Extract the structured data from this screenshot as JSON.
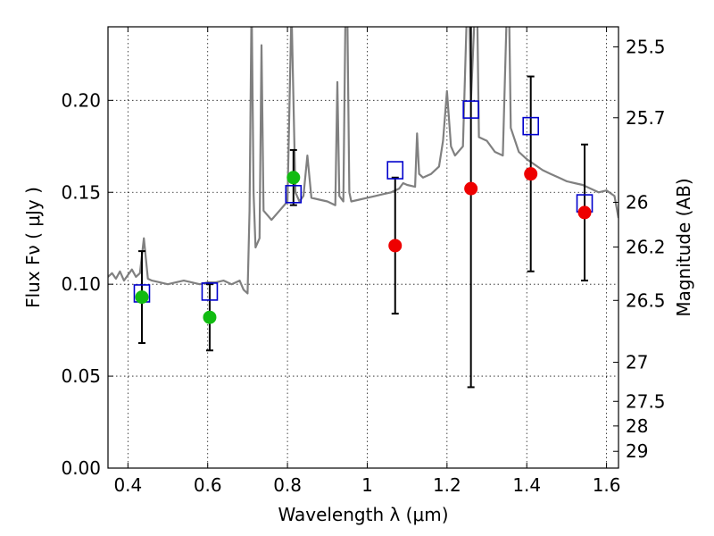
{
  "chart_data": {
    "type": "scatter",
    "title": "",
    "xlabel": "Wavelength  λ (μm)",
    "ylabel": "Flux  Fν  ( μJy )",
    "y2label": "Magnitude (AB)",
    "xlim": [
      0.35,
      1.63
    ],
    "ylim": [
      0.0,
      0.24
    ],
    "grid": true,
    "x_ticks": [
      0.4,
      0.6,
      0.8,
      1.0,
      1.2,
      1.4,
      1.6
    ],
    "x_tick_labels": [
      "0.4",
      "0.6",
      "0.8",
      "1",
      "1.2",
      "1.4",
      "1.6"
    ],
    "y_ticks": [
      0.0,
      0.05,
      0.1,
      0.15,
      0.2
    ],
    "y_tick_labels": [
      "0.00",
      "0.05",
      "0.10",
      "0.15",
      "0.20"
    ],
    "y2_tick_labels": [
      "25.5",
      "25.7",
      "26",
      "26.2",
      "26.5",
      "27",
      "27.5",
      "28",
      "29"
    ],
    "colors": {
      "spectrum": "#808080",
      "model": "#0000cc",
      "optical": "#11bb11",
      "nir": "#ee0000",
      "errorbar": "#000000"
    },
    "series": [
      {
        "type": "line",
        "x": [
          0.35,
          0.36,
          0.37,
          0.38,
          0.39,
          0.4,
          0.41,
          0.42,
          0.43,
          0.44,
          0.45,
          0.46,
          0.48,
          0.5,
          0.52,
          0.54,
          0.56,
          0.58,
          0.6,
          0.62,
          0.64,
          0.66,
          0.68,
          0.69,
          0.7,
          0.705,
          0.71,
          0.715,
          0.72,
          0.73,
          0.735,
          0.74,
          0.76,
          0.78,
          0.8,
          0.81,
          0.82,
          0.83,
          0.84,
          0.85,
          0.86,
          0.88,
          0.9,
          0.92,
          0.925,
          0.93,
          0.94,
          0.945,
          0.95,
          0.955,
          0.96,
          0.98,
          1.0,
          1.02,
          1.04,
          1.06,
          1.08,
          1.09,
          1.1,
          1.12,
          1.125,
          1.13,
          1.14,
          1.16,
          1.18,
          1.19,
          1.2,
          1.21,
          1.22,
          1.24,
          1.25,
          1.255,
          1.26,
          1.27,
          1.275,
          1.28,
          1.3,
          1.32,
          1.34,
          1.35,
          1.355,
          1.36,
          1.38,
          1.4,
          1.42,
          1.44,
          1.46,
          1.48,
          1.5,
          1.52,
          1.54,
          1.56,
          1.58,
          1.6,
          1.62,
          1.63
        ],
        "y": [
          0.104,
          0.106,
          0.103,
          0.107,
          0.102,
          0.105,
          0.108,
          0.104,
          0.106,
          0.125,
          0.103,
          0.102,
          0.101,
          0.1,
          0.101,
          0.102,
          0.101,
          0.1,
          0.101,
          0.101,
          0.102,
          0.1,
          0.102,
          0.097,
          0.095,
          0.14,
          0.255,
          0.15,
          0.12,
          0.125,
          0.23,
          0.14,
          0.135,
          0.14,
          0.145,
          0.25,
          0.15,
          0.145,
          0.148,
          0.17,
          0.147,
          0.146,
          0.145,
          0.143,
          0.21,
          0.148,
          0.145,
          0.24,
          0.25,
          0.15,
          0.145,
          0.146,
          0.147,
          0.148,
          0.149,
          0.15,
          0.152,
          0.155,
          0.154,
          0.153,
          0.182,
          0.16,
          0.158,
          0.16,
          0.164,
          0.178,
          0.205,
          0.175,
          0.17,
          0.175,
          0.25,
          0.26,
          0.2,
          0.25,
          0.26,
          0.18,
          0.178,
          0.172,
          0.17,
          0.25,
          0.26,
          0.185,
          0.172,
          0.168,
          0.165,
          0.162,
          0.16,
          0.158,
          0.156,
          0.155,
          0.154,
          0.152,
          0.15,
          0.151,
          0.148,
          0.136
        ]
      },
      {
        "type": "scatter",
        "marker": "square-open",
        "x": [
          0.435,
          0.605,
          0.815,
          1.07,
          1.26,
          1.41,
          1.545
        ],
        "y": [
          0.095,
          0.096,
          0.149,
          0.162,
          0.195,
          0.186,
          0.144
        ]
      },
      {
        "type": "scatter",
        "marker": "circle",
        "x": [
          0.435,
          0.605,
          0.815
        ],
        "y": [
          0.093,
          0.082,
          0.158
        ],
        "yerr": [
          0.025,
          0.018,
          0.015
        ]
      },
      {
        "type": "scatter",
        "marker": "circle",
        "x": [
          1.07,
          1.26,
          1.41,
          1.545
        ],
        "y": [
          0.121,
          0.152,
          0.16,
          0.139
        ],
        "yerr": [
          0.037,
          0.108,
          0.053,
          0.037
        ]
      }
    ]
  }
}
